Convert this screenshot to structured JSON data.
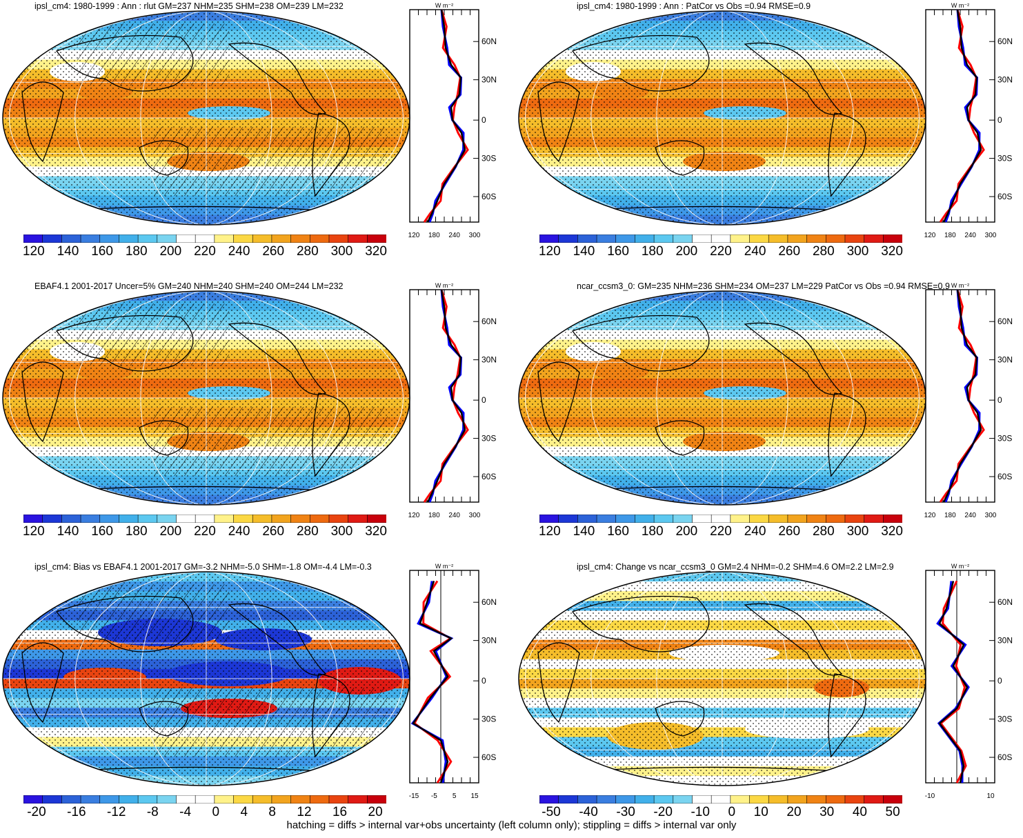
{
  "panels": [
    {
      "title": "ipsl_cm4: 1980-1999 : Ann : rlut GM=237 NHM=235 SHM=238 OM=239 LM=232",
      "colorbar_labels": [
        "120",
        "140",
        "160",
        "180",
        "200",
        "220",
        "240",
        "260",
        "280",
        "300",
        "320"
      ],
      "profile_units": "W m⁻²",
      "profile_xticks": [
        "120",
        "180",
        "240",
        "300"
      ],
      "profile_yticks": [
        "60N",
        "30N",
        "0",
        "30S",
        "60S"
      ],
      "palette": "abs",
      "hatch": true
    },
    {
      "title": "ipsl_cm4: 1980-1999 : Ann : PatCor vs Obs =0.94 RMSE=0.9",
      "colorbar_labels": [
        "120",
        "140",
        "160",
        "180",
        "200",
        "220",
        "240",
        "260",
        "280",
        "300",
        "320"
      ],
      "profile_units": "W m⁻²",
      "profile_xticks": [
        "120",
        "180",
        "240",
        "300"
      ],
      "profile_yticks": [
        "60N",
        "30N",
        "0",
        "30S",
        "60S"
      ],
      "palette": "abs",
      "hatch": false
    },
    {
      "title": "EBAF4.1 2001-2017 Uncer=5% GM=240 NHM=240 SHM=240 OM=244 LM=232",
      "colorbar_labels": [
        "120",
        "140",
        "160",
        "180",
        "200",
        "220",
        "240",
        "260",
        "280",
        "300",
        "320"
      ],
      "profile_units": "W m⁻²",
      "profile_xticks": [
        "120",
        "180",
        "240",
        "300"
      ],
      "profile_yticks": [
        "60N",
        "30N",
        "0",
        "30S",
        "60S"
      ],
      "palette": "abs",
      "hatch": true
    },
    {
      "title": "ncar_ccsm3_0: GM=235 NHM=236 SHM=234 OM=237 LM=229 PatCor vs Obs =0.94 RMSE=0.9",
      "colorbar_labels": [
        "120",
        "140",
        "160",
        "180",
        "200",
        "220",
        "240",
        "260",
        "280",
        "300",
        "320"
      ],
      "profile_units": "W m⁻²",
      "profile_xticks": [
        "120",
        "180",
        "240",
        "300"
      ],
      "profile_yticks": [
        "60N",
        "30N",
        "0",
        "30S",
        "60S"
      ],
      "palette": "abs",
      "hatch": false
    },
    {
      "title": "ipsl_cm4: Bias vs EBAF4.1 2001-2017 GM=-3.2 NHM=-5.0 SHM=-1.8 OM=-4.4 LM=-0.3",
      "colorbar_labels": [
        "-20",
        "-16",
        "-12",
        "-8",
        "-4",
        "0",
        "4",
        "8",
        "12",
        "16",
        "20"
      ],
      "profile_units": "W m⁻²",
      "profile_xticks": [
        "-15",
        "-5",
        "5",
        "15"
      ],
      "profile_yticks": [
        "60N",
        "30N",
        "0",
        "30S",
        "60S"
      ],
      "palette": "bias",
      "hatch": true
    },
    {
      "title": "ipsl_cm4: Change vs ncar_ccsm3_0 GM=2.4 NHM=-0.2 SHM=4.6 OM=2.2 LM=2.9",
      "colorbar_labels": [
        "-50",
        "-40",
        "-30",
        "-20",
        "-10",
        "0",
        "10",
        "20",
        "30",
        "40",
        "50"
      ],
      "profile_units": "W m⁻²",
      "profile_xticks": [
        "-10",
        "10"
      ],
      "profile_yticks": [
        "60N",
        "30N",
        "0",
        "30S",
        "60S"
      ],
      "palette": "chg",
      "hatch": false
    }
  ],
  "colors": {
    "scale": [
      "#2a13e0",
      "#1c37d6",
      "#2c62d8",
      "#3a7ee0",
      "#3e98e8",
      "#41b0ea",
      "#5cc8f0",
      "#7ad4f0",
      "#ffffff",
      "#ffffff",
      "#fff28a",
      "#fbd844",
      "#f5bd2a",
      "#f2a41e",
      "#f08314",
      "#ee6a10",
      "#e94410",
      "#e01a14",
      "#c8000c"
    ],
    "obs_line": "#0000ff",
    "model_line": "#ff0000",
    "ref_line": "#000000"
  },
  "footer": "hatching = diffs > internal var+obs uncertainty (left column only); stippling = diffs > internal var only"
}
